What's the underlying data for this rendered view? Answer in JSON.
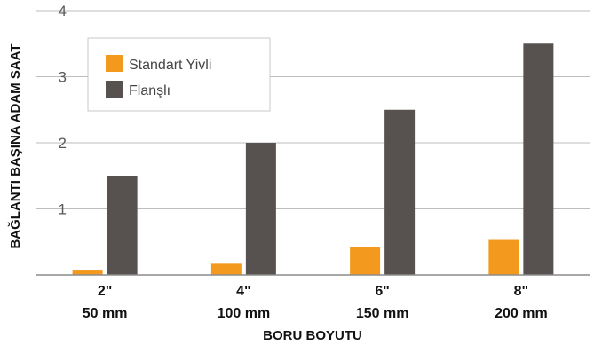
{
  "chart_data": {
    "type": "bar",
    "xlabel": "BORU BOYUTU",
    "ylabel": "BAĞLANTI BAŞINA ADAM SAAT",
    "ylim": [
      0,
      4
    ],
    "yticks": [
      "1",
      "2",
      "3",
      "4"
    ],
    "grid": true,
    "legend_position": "top-left",
    "categories": [
      {
        "line1": "2\"",
        "line2": "50 mm"
      },
      {
        "line1": "4\"",
        "line2": "100 mm"
      },
      {
        "line1": "6\"",
        "line2": "150 mm"
      },
      {
        "line1": "8\"",
        "line2": "200 mm"
      }
    ],
    "series": [
      {
        "name": "Standart Yivli",
        "color": "#f39a1e",
        "values": [
          0.08,
          0.17,
          0.42,
          0.53
        ]
      },
      {
        "name": "Flanşlı",
        "color": "#57524f",
        "values": [
          1.5,
          2.0,
          2.5,
          3.5
        ]
      }
    ]
  }
}
